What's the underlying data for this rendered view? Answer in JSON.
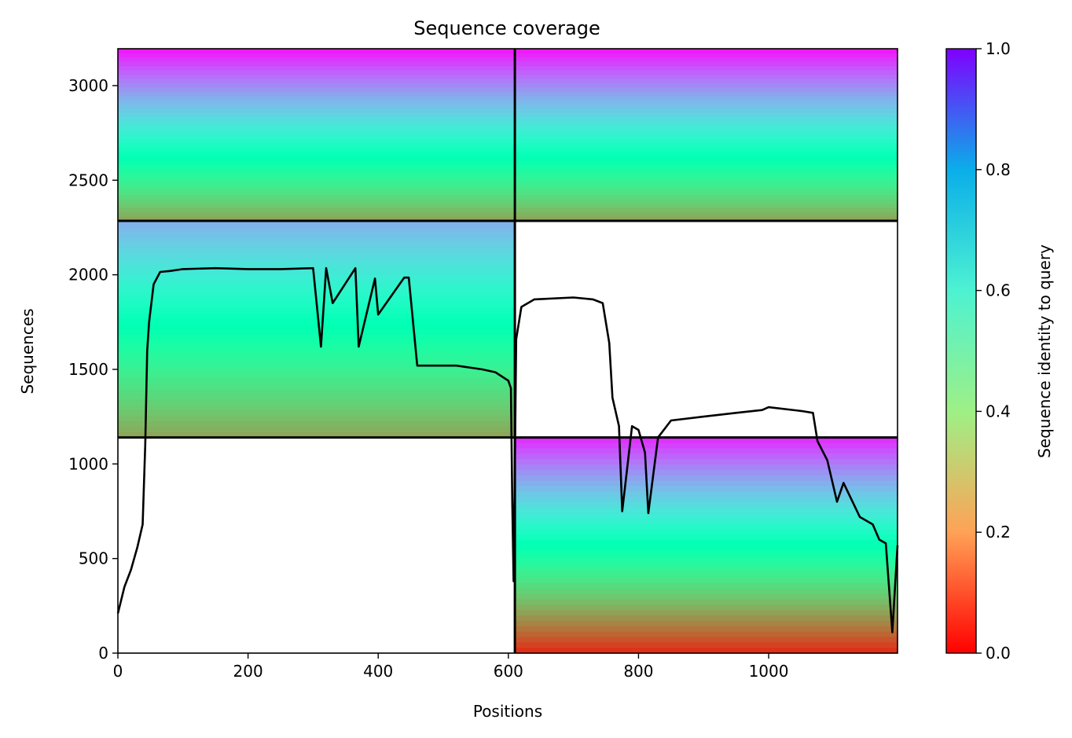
{
  "chart_data": {
    "type": "heatmap",
    "title": "Sequence coverage",
    "xlabel": "Positions",
    "ylabel": "Sequences",
    "xlim": [
      0,
      1198
    ],
    "ylim": [
      0,
      3195
    ],
    "xticks": [
      0,
      200,
      400,
      600,
      800,
      1000
    ],
    "yticks": [
      0,
      500,
      1000,
      1500,
      2000,
      2500,
      3000
    ],
    "colorbar": {
      "label": "Sequence identity to query",
      "range": [
        0,
        1
      ],
      "ticks": [
        "0.0",
        "0.2",
        "0.4",
        "0.6",
        "0.8",
        "1.0"
      ],
      "colormap": "rainbow_r"
    },
    "block_boundaries": {
      "x": [
        610
      ],
      "y": [
        1140,
        2285
      ]
    },
    "blocks": [
      {
        "name": "top-left",
        "x": [
          0,
          610
        ],
        "y": [
          2285,
          3195
        ],
        "identity_top": 0.98,
        "identity_bottom": 0.22
      },
      {
        "name": "top-right",
        "x": [
          610,
          1198
        ],
        "y": [
          2285,
          3195
        ],
        "identity_top": 0.98,
        "identity_bottom": 0.22
      },
      {
        "name": "middle-left",
        "x": [
          0,
          610
        ],
        "y": [
          1140,
          2285
        ],
        "identity_top": 0.76,
        "identity_bottom": 0.22
      },
      {
        "name": "bottom-right",
        "x": [
          610,
          1198
        ],
        "y": [
          0,
          1140
        ],
        "identity_top": 0.95,
        "identity_bottom": 0.05
      }
    ],
    "coverage_line": {
      "x": [
        0,
        10,
        20,
        30,
        38,
        42,
        45,
        48,
        55,
        65,
        80,
        100,
        150,
        200,
        250,
        300,
        312,
        320,
        330,
        365,
        370,
        395,
        400,
        440,
        447,
        460,
        520,
        560,
        580,
        600,
        604,
        606,
        608,
        612,
        620,
        640,
        700,
        730,
        745,
        755,
        760,
        770,
        775,
        790,
        800,
        810,
        815,
        830,
        850,
        900,
        950,
        990,
        1000,
        1050,
        1068,
        1075,
        1090,
        1105,
        1115,
        1140,
        1150,
        1160,
        1170,
        1175,
        1180,
        1190,
        1198
      ],
      "y": [
        210,
        350,
        440,
        560,
        680,
        1100,
        1600,
        1750,
        1950,
        2015,
        2020,
        2030,
        2035,
        2030,
        2030,
        2035,
        1620,
        2035,
        1850,
        2035,
        1620,
        1980,
        1790,
        1985,
        1985,
        1520,
        1520,
        1500,
        1485,
        1440,
        1400,
        800,
        380,
        1660,
        1830,
        1870,
        1880,
        1870,
        1850,
        1640,
        1350,
        1200,
        750,
        1200,
        1180,
        1060,
        740,
        1140,
        1230,
        1250,
        1270,
        1285,
        1300,
        1280,
        1270,
        1120,
        1020,
        800,
        900,
        720,
        700,
        680,
        600,
        590,
        580,
        110,
        570
      ]
    }
  }
}
